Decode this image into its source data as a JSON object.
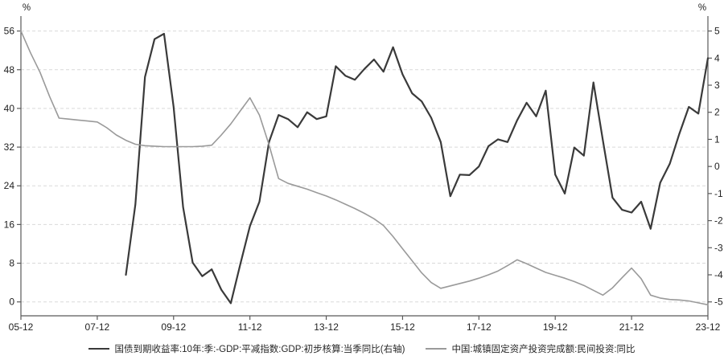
{
  "chart_data": {
    "type": "line",
    "title": "",
    "left_axis_unit_label": "%",
    "right_axis_unit_label": "%",
    "grid": "horizontal-dashed",
    "legend_position": "bottom-center",
    "x_axis": {
      "start": "05-12",
      "end": "23-12",
      "frequency": "quarterly",
      "total_quarters": 72,
      "tick_quarters": [
        0,
        8,
        16,
        24,
        32,
        40,
        48,
        56,
        64,
        72
      ],
      "tick_labels": [
        "05-12",
        "07-12",
        "09-12",
        "11-12",
        "13-12",
        "15-12",
        "17-12",
        "19-12",
        "21-12",
        "23-12"
      ]
    },
    "y_left": {
      "min": 0,
      "max": 56,
      "ticks": [
        0,
        8,
        16,
        24,
        32,
        40,
        48,
        56
      ]
    },
    "y_right": {
      "min": -5,
      "max": 5,
      "ticks": [
        5,
        4,
        3,
        2,
        1,
        0,
        -1,
        -2,
        -3,
        -4,
        -5
      ]
    },
    "colors": {
      "dark_series": "#3a3a3a",
      "light_series": "#9a9a9a",
      "grid": "#d9d9d9",
      "axis": "#595959",
      "text": "#1f1f1f"
    },
    "series": [
      {
        "name": "国债到期收益率:10年:季:-GDP:平减指数:GDP:初步核算:当季同比(右轴)",
        "axis": "right",
        "color": "#3a3a3a",
        "stroke_width": 2.2,
        "start_quarter": 11,
        "start_label": "08-09",
        "values": [
          -4.0,
          -1.4,
          3.3,
          4.7,
          4.9,
          2.2,
          -1.5,
          -3.55,
          -4.05,
          -3.8,
          -4.55,
          -5.05,
          -3.6,
          -2.2,
          -1.3,
          0.9,
          1.9,
          1.75,
          1.45,
          2.0,
          1.75,
          1.85,
          3.7,
          3.35,
          3.2,
          3.6,
          3.95,
          3.5,
          4.4,
          3.4,
          2.7,
          2.4,
          1.8,
          0.9,
          -1.1,
          -0.3,
          -0.32,
          0.0,
          0.75,
          1.0,
          0.9,
          1.7,
          2.35,
          1.85,
          2.8,
          -0.3,
          -1.0,
          0.7,
          0.4,
          3.1,
          0.95,
          -1.15,
          -1.6,
          -1.7,
          -1.3,
          -2.3,
          -0.6,
          0.1,
          1.2,
          2.2,
          1.95,
          4.0
        ]
      },
      {
        "name": "中国:城镇固定资产投资完成额:民间投资:同比",
        "axis": "left",
        "color": "#9a9a9a",
        "stroke_width": 1.6,
        "start_quarter": 0,
        "start_label": "05-12",
        "values": [
          56.0,
          51.5,
          47.5,
          42.5,
          38.0,
          37.8,
          37.6,
          37.4,
          37.2,
          36.0,
          34.5,
          33.4,
          32.6,
          32.3,
          32.2,
          32.1,
          32.1,
          32.1,
          32.1,
          32.2,
          32.4,
          34.5,
          36.8,
          39.5,
          42.2,
          38.6,
          32.5,
          25.5,
          24.5,
          23.9,
          23.3,
          22.6,
          21.9,
          21.1,
          20.2,
          19.3,
          18.3,
          17.2,
          15.8,
          13.5,
          11.0,
          8.5,
          6.0,
          4.0,
          2.8,
          3.3,
          3.8,
          4.3,
          4.9,
          5.6,
          6.4,
          7.5,
          8.7,
          7.9,
          7.0,
          6.1,
          5.5,
          4.9,
          4.2,
          3.4,
          2.4,
          1.4,
          2.9,
          5.0,
          7.0,
          4.8,
          1.4,
          0.8,
          0.5,
          0.4,
          0.2,
          -0.2,
          -0.6
        ]
      }
    ]
  }
}
